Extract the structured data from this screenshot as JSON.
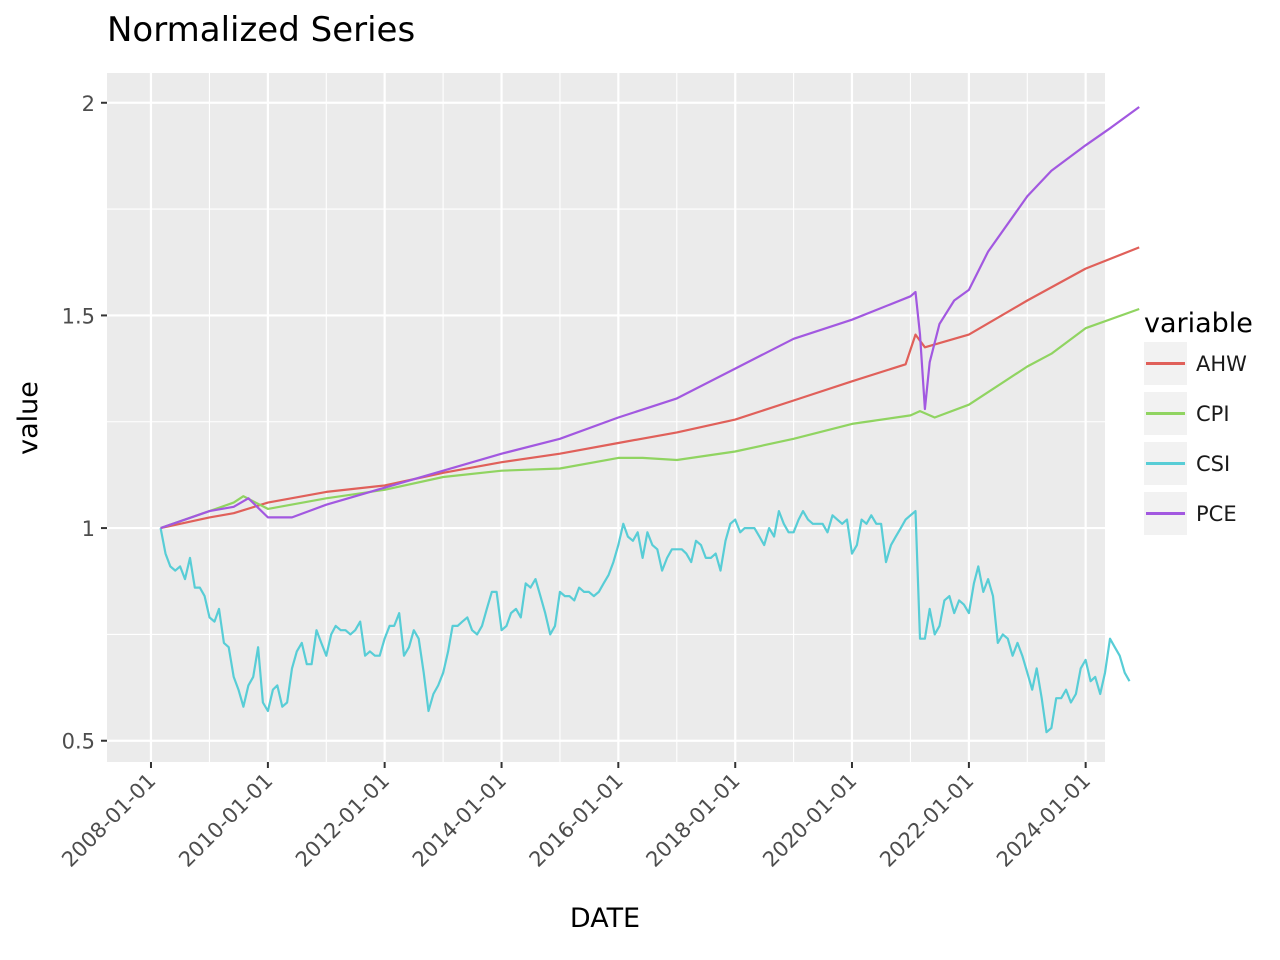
{
  "chart_data": {
    "type": "line",
    "title": "Normalized Series",
    "xlabel": "DATE",
    "ylabel": "value",
    "x_ticks": [
      "2008-01-01",
      "2010-01-01",
      "2012-01-01",
      "2014-01-01",
      "2016-01-01",
      "2018-01-01",
      "2020-01-01",
      "2022-01-01",
      "2024-01-01"
    ],
    "y_ticks": [
      0.5,
      1,
      1.5,
      2
    ],
    "y_tick_labels": [
      "0.5",
      "1",
      "1.5",
      "2"
    ],
    "xlim": [
      "2007-04-01",
      "2024-05-01"
    ],
    "ylim": [
      0.45,
      2.07
    ],
    "grid": true,
    "legend": {
      "title": "variable",
      "position": "right"
    },
    "series": [
      {
        "name": "AHW",
        "color": "#e0605a",
        "points": [
          [
            "2008-03-01",
            1.0
          ],
          [
            "2009-01-01",
            1.025
          ],
          [
            "2009-06-01",
            1.035
          ],
          [
            "2010-01-01",
            1.06
          ],
          [
            "2011-01-01",
            1.085
          ],
          [
            "2012-01-01",
            1.1
          ],
          [
            "2013-01-01",
            1.13
          ],
          [
            "2014-01-01",
            1.155
          ],
          [
            "2015-01-01",
            1.175
          ],
          [
            "2016-01-01",
            1.2
          ],
          [
            "2017-01-01",
            1.225
          ],
          [
            "2018-01-01",
            1.255
          ],
          [
            "2019-01-01",
            1.3
          ],
          [
            "2020-01-01",
            1.345
          ],
          [
            "2020-12-01",
            1.385
          ],
          [
            "2021-02-01",
            1.455
          ],
          [
            "2021-04-01",
            1.425
          ],
          [
            "2022-01-01",
            1.455
          ],
          [
            "2023-01-01",
            1.535
          ],
          [
            "2024-01-01",
            1.61
          ],
          [
            "2024-12-01",
            1.66
          ]
        ]
      },
      {
        "name": "CPI",
        "color": "#90d461",
        "points": [
          [
            "2008-03-01",
            1.0
          ],
          [
            "2009-01-01",
            1.04
          ],
          [
            "2009-06-01",
            1.06
          ],
          [
            "2009-08-01",
            1.075
          ],
          [
            "2010-01-01",
            1.045
          ],
          [
            "2011-01-01",
            1.07
          ],
          [
            "2012-01-01",
            1.09
          ],
          [
            "2013-01-01",
            1.12
          ],
          [
            "2014-01-01",
            1.135
          ],
          [
            "2015-01-01",
            1.14
          ],
          [
            "2016-01-01",
            1.165
          ],
          [
            "2016-06-01",
            1.165
          ],
          [
            "2017-01-01",
            1.16
          ],
          [
            "2018-01-01",
            1.18
          ],
          [
            "2019-01-01",
            1.21
          ],
          [
            "2020-01-01",
            1.245
          ],
          [
            "2021-01-01",
            1.265
          ],
          [
            "2021-03-01",
            1.275
          ],
          [
            "2021-06-01",
            1.26
          ],
          [
            "2022-01-01",
            1.29
          ],
          [
            "2023-01-01",
            1.38
          ],
          [
            "2023-06-01",
            1.41
          ],
          [
            "2024-01-01",
            1.47
          ],
          [
            "2024-12-01",
            1.515
          ]
        ]
      },
      {
        "name": "CSI",
        "color": "#58cdd6",
        "points": [
          [
            "2008-03-01",
            1.0
          ],
          [
            "2008-04-01",
            0.94
          ],
          [
            "2008-05-01",
            0.91
          ],
          [
            "2008-06-01",
            0.9
          ],
          [
            "2008-07-01",
            0.91
          ],
          [
            "2008-08-01",
            0.88
          ],
          [
            "2008-09-01",
            0.93
          ],
          [
            "2008-10-01",
            0.86
          ],
          [
            "2008-11-01",
            0.86
          ],
          [
            "2008-12-01",
            0.84
          ],
          [
            "2009-01-01",
            0.79
          ],
          [
            "2009-02-01",
            0.78
          ],
          [
            "2009-03-01",
            0.81
          ],
          [
            "2009-04-01",
            0.73
          ],
          [
            "2009-05-01",
            0.72
          ],
          [
            "2009-06-01",
            0.65
          ],
          [
            "2009-07-01",
            0.62
          ],
          [
            "2009-08-01",
            0.58
          ],
          [
            "2009-09-01",
            0.63
          ],
          [
            "2009-10-01",
            0.65
          ],
          [
            "2009-11-01",
            0.72
          ],
          [
            "2009-12-01",
            0.59
          ],
          [
            "2010-01-01",
            0.57
          ],
          [
            "2010-02-01",
            0.62
          ],
          [
            "2010-03-01",
            0.63
          ],
          [
            "2010-04-01",
            0.58
          ],
          [
            "2010-05-01",
            0.59
          ],
          [
            "2010-06-01",
            0.67
          ],
          [
            "2010-07-01",
            0.71
          ],
          [
            "2010-08-01",
            0.73
          ],
          [
            "2010-09-01",
            0.68
          ],
          [
            "2010-10-01",
            0.68
          ],
          [
            "2010-11-01",
            0.76
          ],
          [
            "2010-12-01",
            0.73
          ],
          [
            "2011-01-01",
            0.7
          ],
          [
            "2011-02-01",
            0.75
          ],
          [
            "2011-03-01",
            0.77
          ],
          [
            "2011-04-01",
            0.76
          ],
          [
            "2011-05-01",
            0.76
          ],
          [
            "2011-06-01",
            0.75
          ],
          [
            "2011-07-01",
            0.76
          ],
          [
            "2011-08-01",
            0.78
          ],
          [
            "2011-09-01",
            0.7
          ],
          [
            "2011-10-01",
            0.71
          ],
          [
            "2011-11-01",
            0.7
          ],
          [
            "2011-12-01",
            0.7
          ],
          [
            "2012-01-01",
            0.74
          ],
          [
            "2012-02-01",
            0.77
          ],
          [
            "2012-03-01",
            0.77
          ],
          [
            "2012-04-01",
            0.8
          ],
          [
            "2012-05-01",
            0.7
          ],
          [
            "2012-06-01",
            0.72
          ],
          [
            "2012-07-01",
            0.76
          ],
          [
            "2012-08-01",
            0.74
          ],
          [
            "2012-09-01",
            0.66
          ],
          [
            "2012-10-01",
            0.57
          ],
          [
            "2012-11-01",
            0.61
          ],
          [
            "2012-12-01",
            0.63
          ],
          [
            "2013-01-01",
            0.66
          ],
          [
            "2013-02-01",
            0.71
          ],
          [
            "2013-03-01",
            0.77
          ],
          [
            "2013-04-01",
            0.77
          ],
          [
            "2013-05-01",
            0.78
          ],
          [
            "2013-06-01",
            0.79
          ],
          [
            "2013-07-01",
            0.76
          ],
          [
            "2013-08-01",
            0.75
          ],
          [
            "2013-09-01",
            0.77
          ],
          [
            "2013-10-01",
            0.81
          ],
          [
            "2013-11-01",
            0.85
          ],
          [
            "2013-12-01",
            0.85
          ],
          [
            "2014-01-01",
            0.76
          ],
          [
            "2014-02-01",
            0.77
          ],
          [
            "2014-03-01",
            0.8
          ],
          [
            "2014-04-01",
            0.81
          ],
          [
            "2014-05-01",
            0.79
          ],
          [
            "2014-06-01",
            0.87
          ],
          [
            "2014-07-01",
            0.86
          ],
          [
            "2014-08-01",
            0.88
          ],
          [
            "2014-09-01",
            0.84
          ],
          [
            "2014-10-01",
            0.8
          ],
          [
            "2014-11-01",
            0.75
          ],
          [
            "2014-12-01",
            0.77
          ],
          [
            "2015-01-01",
            0.85
          ],
          [
            "2015-02-01",
            0.84
          ],
          [
            "2015-03-01",
            0.84
          ],
          [
            "2015-04-01",
            0.83
          ],
          [
            "2015-05-01",
            0.86
          ],
          [
            "2015-06-01",
            0.85
          ],
          [
            "2015-07-01",
            0.85
          ],
          [
            "2015-08-01",
            0.84
          ],
          [
            "2015-09-01",
            0.85
          ],
          [
            "2015-10-01",
            0.87
          ],
          [
            "2015-11-01",
            0.89
          ],
          [
            "2015-12-01",
            0.92
          ],
          [
            "2016-01-01",
            0.96
          ],
          [
            "2016-02-01",
            1.01
          ],
          [
            "2016-03-01",
            0.98
          ],
          [
            "2016-04-01",
            0.97
          ],
          [
            "2016-05-01",
            0.99
          ],
          [
            "2016-06-01",
            0.93
          ],
          [
            "2016-07-01",
            0.99
          ],
          [
            "2016-08-01",
            0.96
          ],
          [
            "2016-09-01",
            0.95
          ],
          [
            "2016-10-01",
            0.9
          ],
          [
            "2016-11-01",
            0.93
          ],
          [
            "2016-12-01",
            0.95
          ],
          [
            "2017-01-01",
            0.95
          ],
          [
            "2017-02-01",
            0.95
          ],
          [
            "2017-03-01",
            0.94
          ],
          [
            "2017-04-01",
            0.92
          ],
          [
            "2017-05-01",
            0.97
          ],
          [
            "2017-06-01",
            0.96
          ],
          [
            "2017-07-01",
            0.93
          ],
          [
            "2017-08-01",
            0.93
          ],
          [
            "2017-09-01",
            0.94
          ],
          [
            "2017-10-01",
            0.9
          ],
          [
            "2017-11-01",
            0.97
          ],
          [
            "2017-12-01",
            1.01
          ],
          [
            "2018-01-01",
            1.02
          ],
          [
            "2018-02-01",
            0.99
          ],
          [
            "2018-03-01",
            1.0
          ],
          [
            "2018-04-01",
            1.0
          ],
          [
            "2018-05-01",
            1.0
          ],
          [
            "2018-06-01",
            0.98
          ],
          [
            "2018-07-01",
            0.96
          ],
          [
            "2018-08-01",
            1.0
          ],
          [
            "2018-09-01",
            0.98
          ],
          [
            "2018-10-01",
            1.04
          ],
          [
            "2018-11-01",
            1.01
          ],
          [
            "2018-12-01",
            0.99
          ],
          [
            "2019-01-01",
            0.99
          ],
          [
            "2019-02-01",
            1.02
          ],
          [
            "2019-03-01",
            1.04
          ],
          [
            "2019-04-01",
            1.02
          ],
          [
            "2019-05-01",
            1.01
          ],
          [
            "2019-06-01",
            1.01
          ],
          [
            "2019-07-01",
            1.01
          ],
          [
            "2019-08-01",
            0.99
          ],
          [
            "2019-09-01",
            1.03
          ],
          [
            "2019-10-01",
            1.02
          ],
          [
            "2019-11-01",
            1.01
          ],
          [
            "2019-12-01",
            1.02
          ],
          [
            "2020-01-01",
            0.94
          ],
          [
            "2020-02-01",
            0.96
          ],
          [
            "2020-03-01",
            1.02
          ],
          [
            "2020-04-01",
            1.01
          ],
          [
            "2020-05-01",
            1.03
          ],
          [
            "2020-06-01",
            1.01
          ],
          [
            "2020-07-01",
            1.01
          ],
          [
            "2020-08-01",
            0.92
          ],
          [
            "2020-09-01",
            0.96
          ],
          [
            "2020-10-01",
            0.98
          ],
          [
            "2020-11-01",
            1.0
          ],
          [
            "2020-12-01",
            1.02
          ],
          [
            "2021-01-01",
            1.03
          ],
          [
            "2021-02-01",
            1.04
          ],
          [
            "2021-03-01",
            0.74
          ],
          [
            "2021-04-01",
            0.74
          ],
          [
            "2021-05-01",
            0.81
          ],
          [
            "2021-06-01",
            0.75
          ],
          [
            "2021-07-01",
            0.77
          ],
          [
            "2021-08-01",
            0.83
          ],
          [
            "2021-09-01",
            0.84
          ],
          [
            "2021-10-01",
            0.8
          ],
          [
            "2021-11-01",
            0.83
          ],
          [
            "2021-12-01",
            0.82
          ],
          [
            "2022-01-01",
            0.8
          ],
          [
            "2022-02-01",
            0.87
          ],
          [
            "2022-03-01",
            0.91
          ],
          [
            "2022-04-01",
            0.85
          ],
          [
            "2022-05-01",
            0.88
          ],
          [
            "2022-06-01",
            0.84
          ],
          [
            "2022-07-01",
            0.73
          ],
          [
            "2022-08-01",
            0.75
          ],
          [
            "2022-09-01",
            0.74
          ],
          [
            "2022-10-01",
            0.7
          ],
          [
            "2022-11-01",
            0.73
          ],
          [
            "2022-12-01",
            0.7
          ],
          [
            "2023-01-01",
            0.66
          ],
          [
            "2023-02-01",
            0.62
          ],
          [
            "2023-03-01",
            0.67
          ],
          [
            "2023-04-01",
            0.6
          ],
          [
            "2023-05-01",
            0.52
          ],
          [
            "2023-06-01",
            0.53
          ],
          [
            "2023-07-01",
            0.6
          ],
          [
            "2023-08-01",
            0.6
          ],
          [
            "2023-09-01",
            0.62
          ],
          [
            "2023-10-01",
            0.59
          ],
          [
            "2023-11-01",
            0.61
          ],
          [
            "2023-12-01",
            0.67
          ],
          [
            "2024-01-01",
            0.69
          ],
          [
            "2024-02-01",
            0.64
          ],
          [
            "2024-03-01",
            0.65
          ],
          [
            "2024-04-01",
            0.61
          ],
          [
            "2024-05-01",
            0.66
          ],
          [
            "2024-06-01",
            0.74
          ],
          [
            "2024-07-01",
            0.72
          ],
          [
            "2024-08-01",
            0.7
          ],
          [
            "2024-09-01",
            0.66
          ],
          [
            "2024-10-01",
            0.64
          ]
        ]
      },
      {
        "name": "PCE",
        "color": "#a258e0",
        "points": [
          [
            "2008-03-01",
            1.0
          ],
          [
            "2009-01-01",
            1.04
          ],
          [
            "2009-06-01",
            1.05
          ],
          [
            "2009-09-01",
            1.07
          ],
          [
            "2010-01-01",
            1.025
          ],
          [
            "2010-06-01",
            1.025
          ],
          [
            "2011-01-01",
            1.055
          ],
          [
            "2012-01-01",
            1.095
          ],
          [
            "2013-01-01",
            1.135
          ],
          [
            "2014-01-01",
            1.175
          ],
          [
            "2015-01-01",
            1.21
          ],
          [
            "2016-01-01",
            1.26
          ],
          [
            "2017-01-01",
            1.305
          ],
          [
            "2018-01-01",
            1.375
          ],
          [
            "2019-01-01",
            1.445
          ],
          [
            "2020-01-01",
            1.49
          ],
          [
            "2021-01-01",
            1.545
          ],
          [
            "2021-02-01",
            1.555
          ],
          [
            "2021-03-01",
            1.455
          ],
          [
            "2021-04-01",
            1.28
          ],
          [
            "2021-05-01",
            1.39
          ],
          [
            "2021-07-01",
            1.48
          ],
          [
            "2021-10-01",
            1.535
          ],
          [
            "2022-01-01",
            1.56
          ],
          [
            "2022-05-01",
            1.65
          ],
          [
            "2023-01-01",
            1.78
          ],
          [
            "2023-06-01",
            1.84
          ],
          [
            "2024-01-01",
            1.9
          ],
          [
            "2024-06-01",
            1.94
          ],
          [
            "2024-12-01",
            1.99
          ]
        ]
      }
    ]
  }
}
